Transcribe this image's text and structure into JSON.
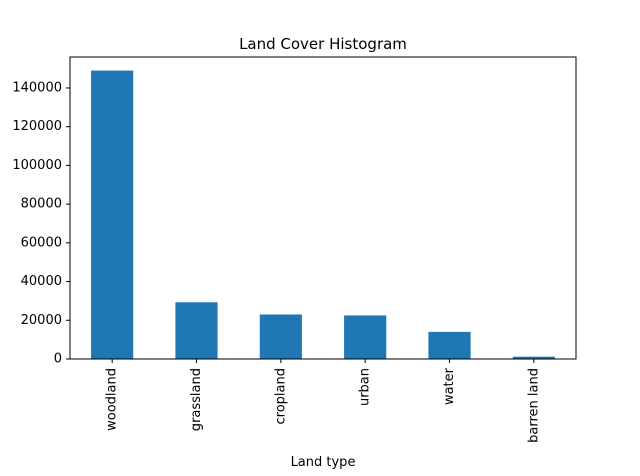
{
  "chart_data": {
    "type": "bar",
    "title": "Land Cover Histogram",
    "xlabel": "Land type",
    "ylabel": "",
    "categories": [
      "woodland",
      "grassland",
      "cropland",
      "urban",
      "water",
      "barren land"
    ],
    "values": [
      149000,
      29300,
      23000,
      22500,
      14000,
      1200
    ],
    "ylim": [
      0,
      156000
    ],
    "yticks": [
      0,
      20000,
      40000,
      60000,
      80000,
      100000,
      120000,
      140000
    ],
    "bar_color": "#1f77b4",
    "grid": false,
    "legend": "none"
  }
}
